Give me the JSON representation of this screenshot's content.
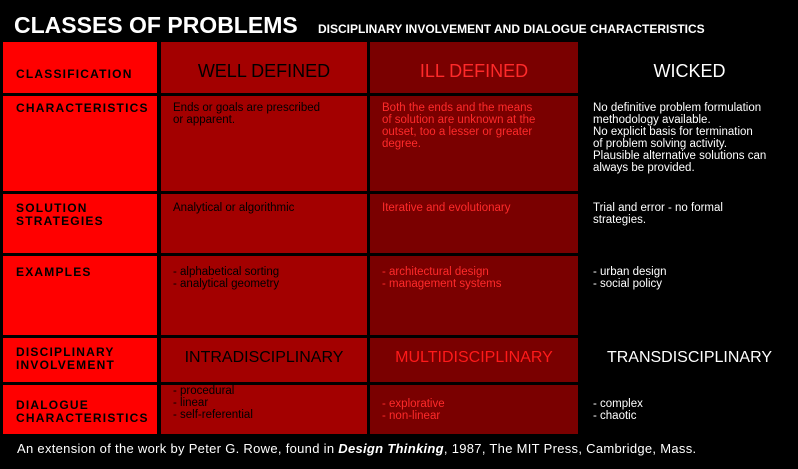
{
  "title": "CLASSES OF PROBLEMS",
  "subtitle": "DISCIPLINARY INVOLVEMENT AND DIALOGUE CHARACTERISTICS",
  "rows": {
    "classification": "CLASSIFICATION",
    "characteristics": "CHARACTERISTICS",
    "solution_strategies": "SOLUTION\nSTRATEGIES",
    "examples": "EXAMPLES",
    "disciplinary_involvement": "DISCIPLINARY\nINVOLVEMENT",
    "dialogue_characteristics": "DIALOGUE\nCHARACTERISTICS"
  },
  "well_defined": {
    "heading": "WELL DEFINED",
    "characteristics": "Ends or goals are prescribed\nor apparent.",
    "solution_strategies": "Analytical or algorithmic",
    "examples": "- alphabetical sorting\n- analytical geometry",
    "involvement": "INTRADISCIPLINARY",
    "dialogue": "- procedural\n- linear\n- self-referential"
  },
  "ill_defined": {
    "heading": "ILL DEFINED",
    "characteristics": "Both the ends and the means\nof solution are unknown at the\noutset, too a lesser or greater\ndegree.",
    "solution_strategies": "Iterative and evolutionary",
    "examples": "- architectural design\n- management systems",
    "involvement": "MULTIDISCIPLINARY",
    "dialogue": "- explorative\n- non-linear"
  },
  "wicked": {
    "heading": "WICKED",
    "characteristics": "No definitive problem formulation\nmethodology available.\nNo explicit basis for termination\nof problem solving activity.\nPlausible alternative solutions can\nalways be provided.",
    "solution_strategies": "Trial and error - no formal\nstrategies.",
    "examples": "- urban design\n- social policy",
    "involvement": "TRANSDISCIPLINARY",
    "dialogue": "- complex\n- chaotic"
  },
  "footer": {
    "prefix": "An extension of the work by Peter G. Rowe, found in ",
    "book": "Design Thinking",
    "suffix": ", 1987, The MIT Press, Cambridge, Mass."
  },
  "colors": {
    "label_column": "#ff0000",
    "well_defined_column": "#a30000",
    "ill_defined_column": "#7a0000",
    "wicked_column": "#000000",
    "background": "#000000"
  }
}
